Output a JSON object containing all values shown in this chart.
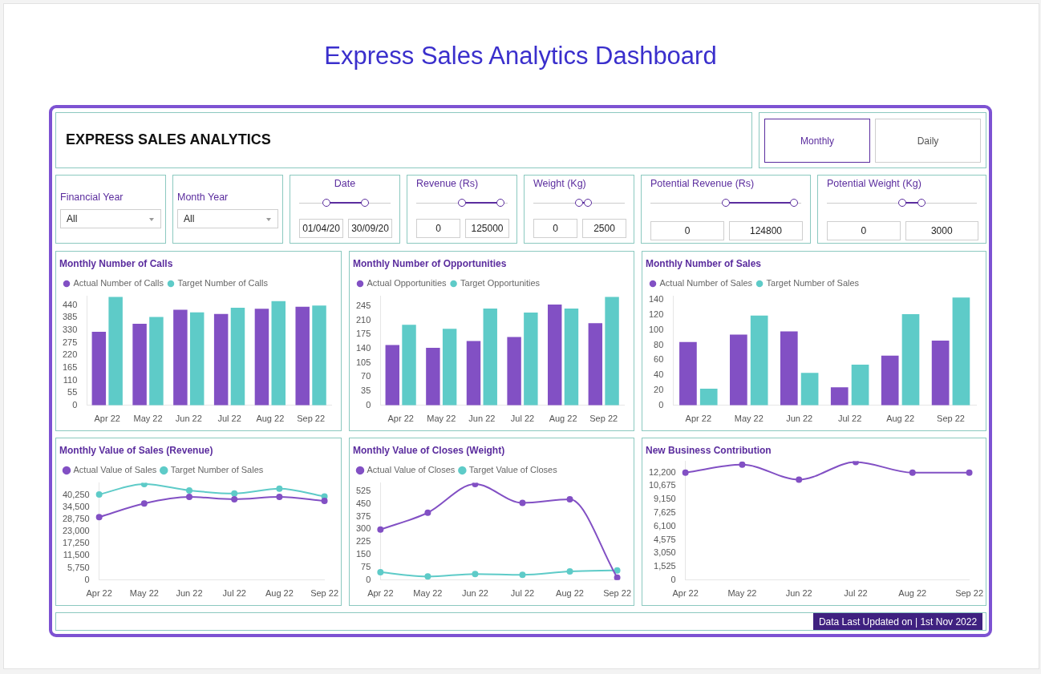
{
  "chart_data": [
    {
      "type": "other",
      "title": "Express Sales Analytics Dashboard",
      "subtitle": "EXPRESS SALES ANALYTICS",
      "annotations": [
        "Monthly",
        "Daily",
        "Financial Year",
        "All",
        "Month Year",
        "All",
        "Date",
        "01/04/20",
        "30/09/20",
        "Revenue (Rs)",
        "0",
        "125000",
        "Weight (Kg)",
        "0",
        "2500",
        "Potential Revenue (Rs)",
        "0",
        "124800",
        "Potential Weight (Kg)",
        "0",
        "3000",
        "Data Last Updated on | 1st Nov 2022"
      ]
    },
    {
      "type": "bar",
      "title": "Monthly Number of Calls",
      "categories": [
        "Apr 22",
        "May 22",
        "Jun 22",
        "Jul 22",
        "Aug 22",
        "Sep 22"
      ],
      "series": [
        {
          "name": "Actual Number of Calls",
          "color": "#8250c4",
          "values": [
            323,
            358,
            420,
            401,
            424,
            433
          ]
        },
        {
          "name": "Target Number of Calls",
          "color": "#5ecbc8",
          "values": [
            476,
            388,
            408,
            429,
            458,
            438
          ]
        }
      ],
      "ylim": [
        0,
        480
      ],
      "yticks": [
        0,
        55,
        110,
        165,
        220,
        275,
        330,
        385,
        440
      ],
      "grid": false,
      "legend": "top left"
    },
    {
      "type": "bar",
      "title": "Monthly Number of Opportunities",
      "categories": [
        "Apr 22",
        "May 22",
        "Jun 22",
        "Jul 22",
        "Aug 22",
        "Sep 22"
      ],
      "series": [
        {
          "name": "Actual Opportunities",
          "color": "#8250c4",
          "values": [
            149,
            142,
            159,
            169,
            249,
            203
          ]
        },
        {
          "name": "Target Opportunities",
          "color": "#5ecbc8",
          "values": [
            199,
            189,
            239,
            229,
            239,
            268
          ]
        }
      ],
      "ylim": [
        0,
        270
      ],
      "yticks": [
        0,
        35,
        70,
        105,
        140,
        175,
        210,
        245
      ],
      "grid": false,
      "legend": "top left"
    },
    {
      "type": "bar",
      "title": "Monthly Number of Sales",
      "categories": [
        "Apr 22",
        "May 22",
        "Jun 22",
        "Jul 22",
        "Aug 22",
        "Sep 22"
      ],
      "series": [
        {
          "name": "Actual Number of Sales",
          "color": "#8250c4",
          "values": [
            84,
            94,
            98,
            24,
            66,
            86
          ]
        },
        {
          "name": "Target Number of Sales",
          "color": "#5ecbc8",
          "values": [
            22,
            119,
            43,
            54,
            121,
            143
          ]
        }
      ],
      "ylim": [
        0,
        145
      ],
      "yticks": [
        0,
        20,
        40,
        60,
        80,
        100,
        120,
        140
      ],
      "grid": false,
      "legend": "top left"
    },
    {
      "type": "line",
      "title": "Monthly Value of Sales (Revenue)",
      "categories": [
        "Apr 22",
        "May 22",
        "Jun 22",
        "Jul 22",
        "Aug 22",
        "Sep 22"
      ],
      "series": [
        {
          "name": "Actual Value of Sales",
          "color": "#8250c4",
          "values": [
            29800,
            36200,
            39300,
            38200,
            39300,
            37400
          ]
        },
        {
          "name": "Target Number of Sales",
          "color": "#5ecbc8",
          "values": [
            40500,
            45400,
            42400,
            40900,
            43200,
            39500
          ]
        }
      ],
      "ylim": [
        0,
        46000
      ],
      "yticks": [
        0,
        {
          "value": 5750,
          "label": "5,750"
        },
        {
          "value": 11500,
          "label": "11,500"
        },
        {
          "value": 17250,
          "label": "17,250"
        },
        {
          "value": 23000,
          "label": "23,000"
        },
        {
          "value": 28750,
          "label": "28,750"
        },
        {
          "value": 34500,
          "label": "34,500"
        },
        {
          "value": 40250,
          "label": "40,250"
        }
      ],
      "grid": false,
      "legend": "top left",
      "marker": "circle",
      "line_style": "solid"
    },
    {
      "type": "line",
      "title": "Monthly Value of Closes (Weight)",
      "categories": [
        "Apr 22",
        "May 22",
        "Jun 22",
        "Jul 22",
        "Aug 22",
        "Sep 22"
      ],
      "series": [
        {
          "name": "Actual Value of Closes",
          "color": "#8250c4",
          "values": [
            299,
            398,
            567,
            456,
            477,
            15
          ]
        },
        {
          "name": "Target Value of Closes",
          "color": "#5ecbc8",
          "values": [
            46,
            21,
            36,
            31,
            51,
            57
          ]
        }
      ],
      "ylim": [
        0,
        575
      ],
      "yticks": [
        0,
        75,
        150,
        225,
        300,
        375,
        450,
        525
      ],
      "grid": false,
      "legend": "top left",
      "marker": "circle",
      "line_style": "solid"
    },
    {
      "type": "line",
      "title": "New Business Contribution",
      "categories": [
        "Apr 22",
        "May 22",
        "Jun 22",
        "Jul 22",
        "Aug 22",
        "Sep 22"
      ],
      "series": [
        {
          "color": "#8250c4",
          "values": [
            12200,
            13100,
            11400,
            13400,
            12200,
            12200
          ]
        }
      ],
      "ylim": [
        0,
        13500
      ],
      "yticks": [
        0,
        {
          "value": 1525,
          "label": "1,525"
        },
        {
          "value": 3050,
          "label": "3,050"
        },
        {
          "value": 4575,
          "label": "4,575"
        },
        {
          "value": 6100,
          "label": "6,100"
        },
        {
          "value": 7625,
          "label": "7,625"
        },
        {
          "value": 9150,
          "label": "9,150"
        },
        {
          "value": 10675,
          "label": "10,675"
        },
        {
          "value": 12200,
          "label": "12,200"
        }
      ],
      "grid": false,
      "marker": "circle",
      "line_style": "solid"
    }
  ]
}
